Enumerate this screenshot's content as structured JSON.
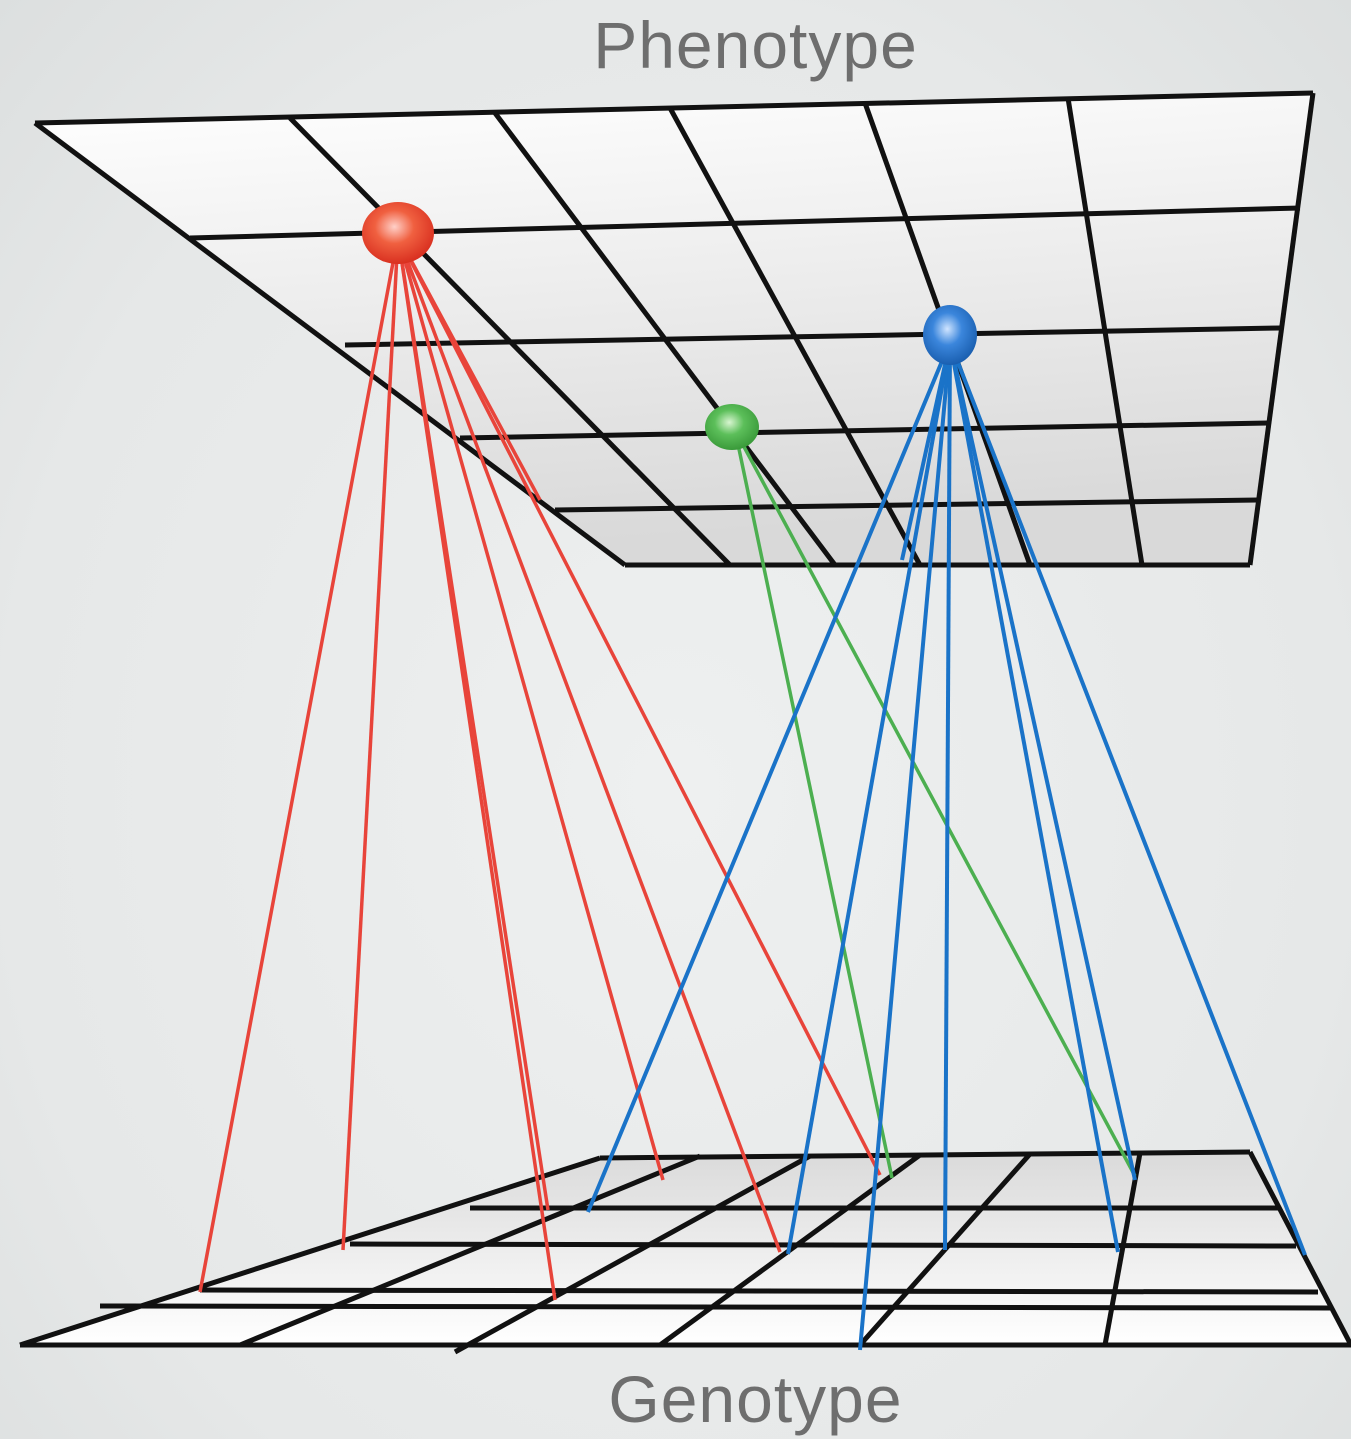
{
  "labels": {
    "top": "Phenotype",
    "bottom": "Genotype"
  },
  "colors": {
    "red": "#e8443a",
    "green": "#4caf50",
    "blue": "#1a73c8",
    "grid": "#111111"
  },
  "nodes": [
    {
      "color": "red",
      "links": 8
    },
    {
      "color": "green",
      "links": 2
    },
    {
      "color": "blue",
      "links": 8
    }
  ]
}
